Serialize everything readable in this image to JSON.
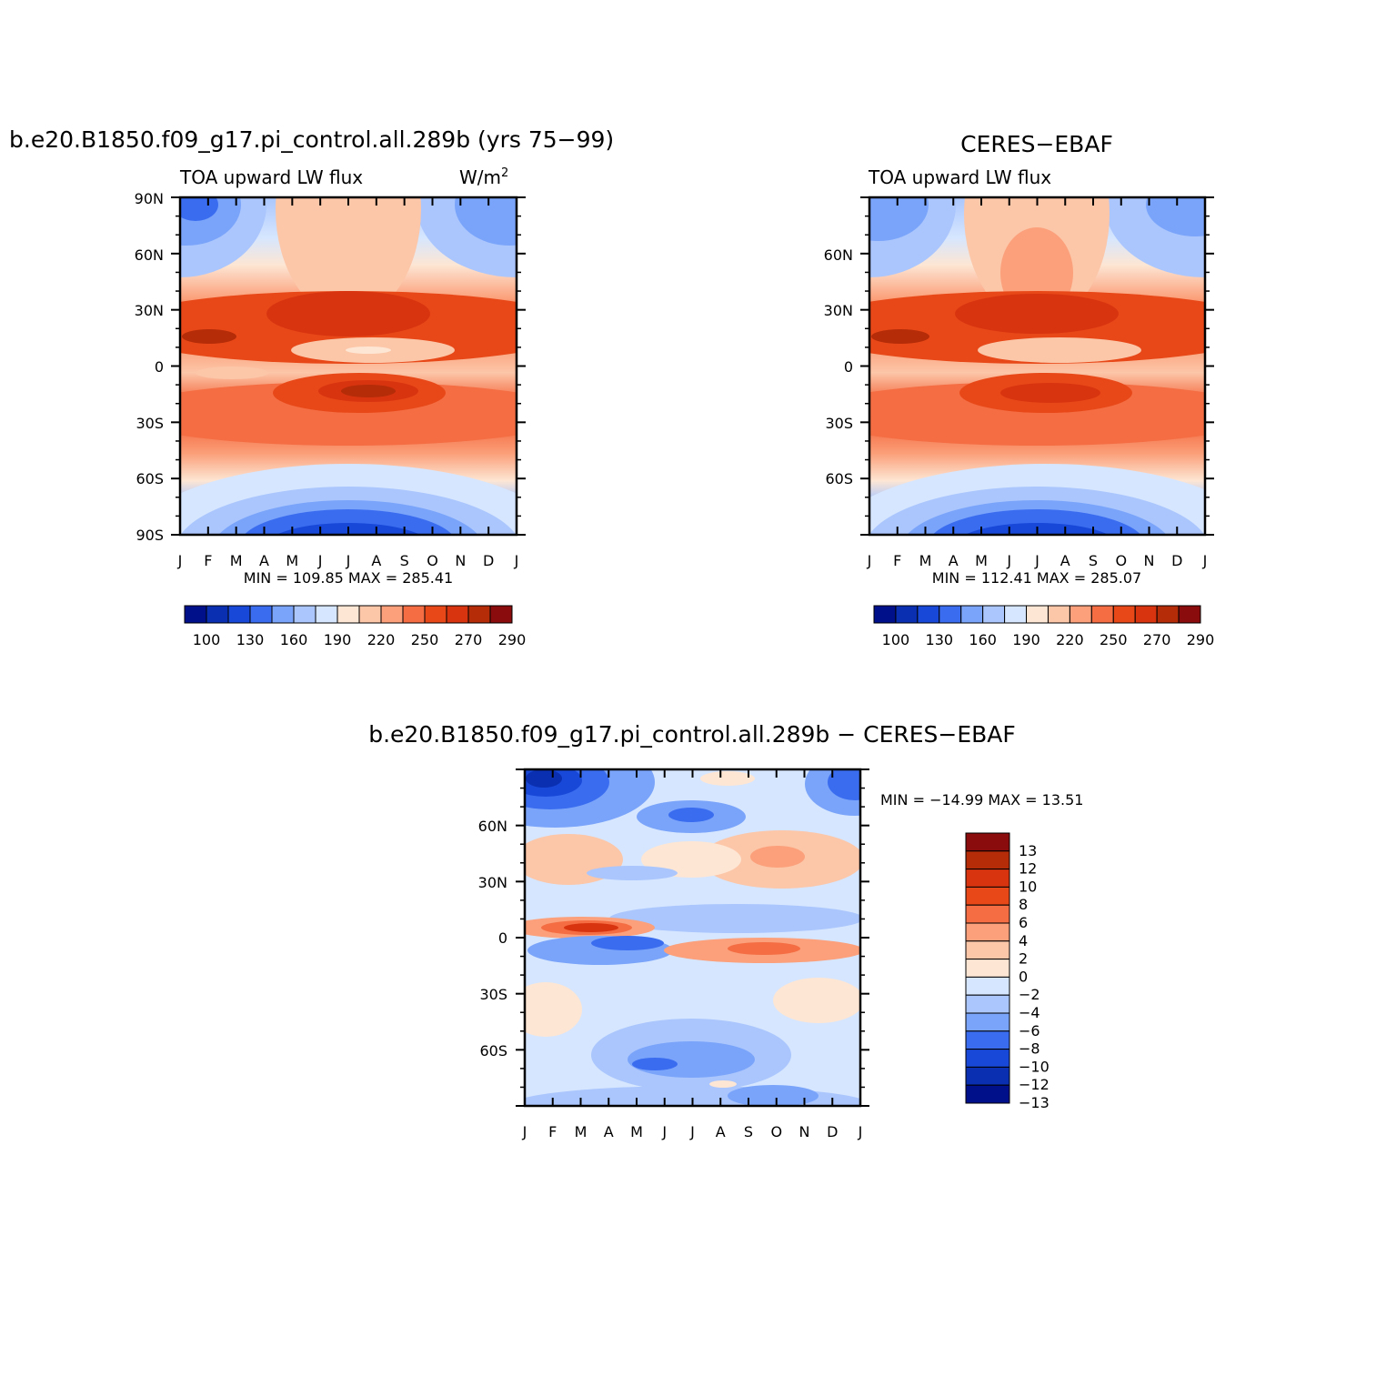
{
  "months": [
    "J",
    "F",
    "M",
    "A",
    "M",
    "J",
    "J",
    "A",
    "S",
    "O",
    "N",
    "D",
    "J"
  ],
  "panels": [
    {
      "title": "b.e20.B1850.f09_g17.pi_control.all.289b (yrs 75−99)",
      "left_label": "TOA upward LW flux",
      "units": "W/m",
      "units_sup": "2",
      "stats": "MIN =  109.85 MAX =  285.41",
      "lat_ticks": [
        "90N",
        "60N",
        "30N",
        "0",
        "30S",
        "60S",
        "90S"
      ]
    },
    {
      "title": "CERES−EBAF",
      "left_label": "TOA upward LW flux",
      "units": "",
      "units_sup": "",
      "stats": "MIN =  112.41 MAX =  285.07",
      "lat_ticks": [
        "",
        "60N",
        "30N",
        "0",
        "30S",
        "60S",
        ""
      ]
    }
  ],
  "diff_panel": {
    "title": "b.e20.B1850.f09_g17.pi_control.all.289b − CERES−EBAF",
    "stats": "MIN = −14.99 MAX =   13.51",
    "lat_ticks": [
      "60N",
      "30N",
      "0",
      "30S",
      "60S"
    ]
  },
  "abs_colorbar": {
    "colors": [
      "#00108a",
      "#0a2fb0",
      "#1848d8",
      "#3a6cf0",
      "#7aa4fa",
      "#aac6fd",
      "#d6e6fe",
      "#fde6d4",
      "#fcc6a8",
      "#fba07a",
      "#f46d43",
      "#e84818",
      "#d83410",
      "#b52c08",
      "#8a0c0c"
    ],
    "labels": [
      "100",
      "130",
      "160",
      "190",
      "220",
      "250",
      "270",
      "290"
    ]
  },
  "diff_colorbar": {
    "colors": [
      "#00108a",
      "#0a2fb0",
      "#1848d8",
      "#3a6cf0",
      "#7aa4fa",
      "#aac6fd",
      "#d6e6fe",
      "#fde6d4",
      "#fcc6a8",
      "#fba07a",
      "#f46d43",
      "#e84818",
      "#d83410",
      "#b52c08",
      "#8a0c0c"
    ],
    "labels": [
      "13",
      "12",
      "10",
      "8",
      "6",
      "4",
      "2",
      "0",
      "−2",
      "−4",
      "−6",
      "−8",
      "−10",
      "−12",
      "−13"
    ]
  },
  "chart_data": [
    {
      "type": "heatmap",
      "title": "b.e20.B1850.f09_g17.pi_control.all.289b (yrs 75−99)",
      "subtitle": "TOA upward LW flux",
      "units": "W/m2",
      "x": [
        "J",
        "F",
        "M",
        "A",
        "M",
        "J",
        "J",
        "A",
        "S",
        "O",
        "N",
        "D",
        "J"
      ],
      "y_ticks": [
        "90N",
        "60N",
        "30N",
        "0",
        "30S",
        "60S",
        "90S"
      ],
      "ylim": [
        -90,
        90
      ],
      "min": 109.85,
      "max": 285.41,
      "levels": [
        100,
        130,
        160,
        190,
        220,
        250,
        270,
        290
      ]
    },
    {
      "type": "heatmap",
      "title": "CERES−EBAF",
      "subtitle": "TOA upward LW flux",
      "x": [
        "J",
        "F",
        "M",
        "A",
        "M",
        "J",
        "J",
        "A",
        "S",
        "O",
        "N",
        "D",
        "J"
      ],
      "y_ticks": [
        "60N",
        "30N",
        "0",
        "30S",
        "60S"
      ],
      "ylim": [
        -90,
        90
      ],
      "min": 112.41,
      "max": 285.07,
      "levels": [
        100,
        130,
        160,
        190,
        220,
        250,
        270,
        290
      ]
    },
    {
      "type": "heatmap",
      "title": "b.e20.B1850.f09_g17.pi_control.all.289b − CERES−EBAF",
      "x": [
        "J",
        "F",
        "M",
        "A",
        "M",
        "J",
        "J",
        "A",
        "S",
        "O",
        "N",
        "D",
        "J"
      ],
      "y_ticks": [
        "60N",
        "30N",
        "0",
        "30S",
        "60S"
      ],
      "ylim": [
        -90,
        90
      ],
      "min": -14.99,
      "max": 13.51,
      "levels": [
        13,
        12,
        10,
        8,
        6,
        4,
        2,
        0,
        -2,
        -4,
        -6,
        -8,
        -10,
        -12,
        -13
      ]
    }
  ]
}
